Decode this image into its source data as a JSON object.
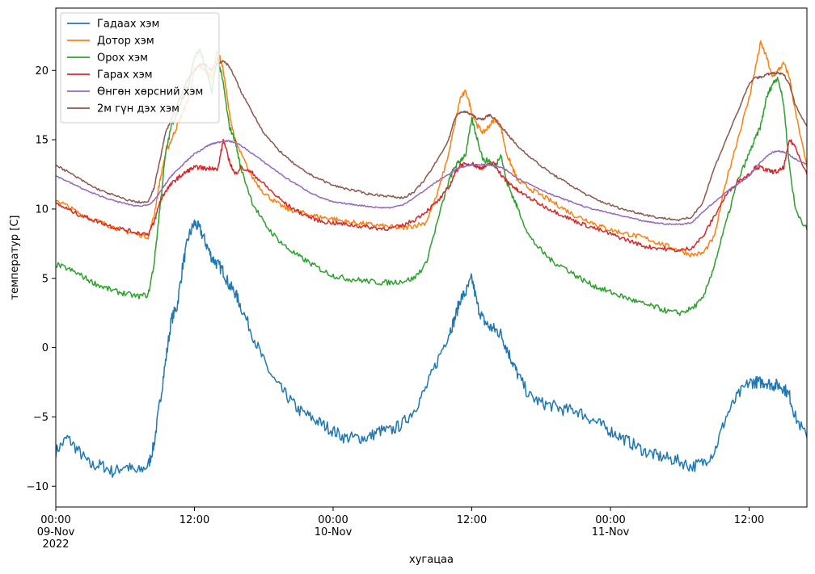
{
  "chart_data": {
    "type": "line",
    "xlabel": "хугацаа",
    "ylabel": "температур [C]",
    "x_unit": "hours since 2022-11-09 00:00",
    "xlim": [
      0,
      65
    ],
    "ylim": [
      -11.5,
      24.5
    ],
    "y_ticks": [
      -10,
      -5,
      0,
      5,
      10,
      15,
      20
    ],
    "x_ticks": [
      {
        "x": 0,
        "lines": [
          "00:00",
          "09-Nov",
          "2022"
        ]
      },
      {
        "x": 12,
        "lines": [
          "12:00"
        ]
      },
      {
        "x": 24,
        "lines": [
          "00:00",
          "10-Nov"
        ]
      },
      {
        "x": 36,
        "lines": [
          "12:00"
        ]
      },
      {
        "x": 48,
        "lines": [
          "00:00",
          "11-Nov"
        ]
      },
      {
        "x": 60,
        "lines": [
          "12:00"
        ]
      }
    ],
    "legend_position": "upper-left",
    "x": [
      0,
      1,
      2,
      3,
      4,
      5,
      6,
      7,
      8,
      8.5,
      9,
      9.5,
      10,
      10.5,
      11,
      11.5,
      12,
      12.5,
      13,
      13.5,
      14,
      14.5,
      15,
      15.5,
      16,
      17,
      18,
      19,
      20,
      21,
      22,
      23,
      24,
      25,
      26,
      27,
      28,
      29,
      30,
      31,
      32,
      33,
      34,
      34.5,
      35,
      35.5,
      36,
      36.5,
      37,
      37.5,
      38,
      38.5,
      39,
      39.5,
      40,
      41,
      42,
      43,
      44,
      45,
      46,
      47,
      48,
      49,
      50,
      51,
      52,
      53,
      54,
      55,
      56,
      57,
      58,
      59,
      60,
      60.5,
      61,
      61.5,
      62,
      62.5,
      63,
      63.5,
      64,
      65
    ],
    "series": [
      {
        "name": "Гадаах хэм",
        "color": "#1f77b4",
        "values": [
          -7.5,
          -6.5,
          -7.5,
          -8.5,
          -8.5,
          -9,
          -8.5,
          -9,
          -8.5,
          -7,
          -4,
          -1,
          2,
          3,
          6,
          8,
          9,
          8.5,
          7.5,
          6.5,
          6,
          5.5,
          4.5,
          4,
          3,
          1,
          -1,
          -2.5,
          -3.5,
          -4.5,
          -5,
          -5.5,
          -6,
          -6.5,
          -6.5,
          -6.5,
          -6,
          -6,
          -5.5,
          -4.5,
          -3,
          -1,
          1,
          2,
          3.5,
          4,
          5,
          3,
          2,
          1.5,
          1.3,
          1,
          0,
          -1,
          -2,
          -3.5,
          -4,
          -4.2,
          -4.5,
          -4.5,
          -5,
          -5.5,
          -6,
          -6.5,
          -7,
          -7.5,
          -7.8,
          -8,
          -8.2,
          -8.6,
          -8.3,
          -7.5,
          -5,
          -3.5,
          -2.5,
          -2.5,
          -2.5,
          -2.5,
          -2.7,
          -2.7,
          -2.9,
          -3.5,
          -5,
          -6.5
        ]
      },
      {
        "name": "Дотор хэм",
        "color": "#ff7f0e",
        "values": [
          10.7,
          10.2,
          9.7,
          9.3,
          9,
          8.7,
          8.4,
          8.2,
          8.0,
          9.5,
          12,
          14,
          15,
          16,
          17,
          18,
          20,
          20.3,
          20,
          19.5,
          21.5,
          20,
          17,
          15,
          14,
          12.3,
          11.2,
          10.5,
          10,
          9.8,
          9.6,
          9.4,
          9.3,
          9.1,
          9,
          8.9,
          8.8,
          8.7,
          8.6,
          8.8,
          9,
          11,
          14,
          16,
          18,
          18.5,
          17,
          16,
          15.5,
          16,
          16.5,
          16,
          14,
          13,
          12,
          11.5,
          11,
          10.5,
          10,
          9.5,
          9.2,
          8.8,
          8.5,
          8.3,
          8.1,
          7.9,
          7.6,
          7.3,
          7.0,
          6.7,
          6.8,
          8,
          12,
          15,
          18,
          20,
          22,
          21,
          19.5,
          20,
          20.5,
          19.5,
          17,
          13
        ]
      },
      {
        "name": "Орох хэм",
        "color": "#2ca02c",
        "values": [
          6,
          5.7,
          5.3,
          4.8,
          4.4,
          4.1,
          3.9,
          3.7,
          3.8,
          6,
          10,
          14,
          16,
          17,
          18,
          19,
          21,
          21.5,
          20,
          18.5,
          21,
          19,
          16,
          15,
          13,
          10.5,
          9,
          8,
          7.2,
          6.6,
          6.1,
          5.6,
          5.2,
          5,
          4.9,
          4.8,
          4.7,
          4.7,
          4.8,
          5,
          6,
          9,
          12,
          13,
          13.5,
          14,
          16.5,
          15,
          13.5,
          13.5,
          13,
          14,
          12,
          11,
          10,
          8,
          7,
          6.2,
          5.8,
          5.2,
          4.7,
          4.3,
          4,
          3.7,
          3.4,
          3.1,
          2.9,
          2.6,
          2.5,
          2.8,
          3.5,
          6,
          9,
          12,
          14,
          15,
          16,
          18,
          19,
          19.5,
          17.5,
          13,
          10,
          8.5
        ]
      },
      {
        "name": "Гарах хэм",
        "color": "#d62728",
        "values": [
          10.4,
          10.0,
          9.6,
          9.3,
          9.0,
          8.7,
          8.5,
          8.3,
          8.2,
          9,
          10.5,
          11.3,
          11.8,
          12.2,
          12.5,
          12.8,
          13,
          13,
          12.9,
          13,
          12.8,
          15,
          13.5,
          12.5,
          13,
          12.6,
          11.8,
          11,
          10.3,
          9.8,
          9.4,
          9.1,
          9,
          8.9,
          8.8,
          8.7,
          8.6,
          8.6,
          8.8,
          9.2,
          9.8,
          10.5,
          11.5,
          12.5,
          13.2,
          13.2,
          13.3,
          13,
          13,
          13.2,
          13.3,
          12.5,
          12,
          11.7,
          11.3,
          10.8,
          10.3,
          9.9,
          9.5,
          9.1,
          8.8,
          8.5,
          8.2,
          7.9,
          7.6,
          7.3,
          7.2,
          7.1,
          7.0,
          7.2,
          8,
          9.5,
          11,
          12,
          12.5,
          13,
          13,
          12.8,
          12.7,
          12.7,
          13,
          15,
          14.5,
          12.5
        ]
      },
      {
        "name": "Өнгөн хөрсний хэм",
        "color": "#9467bd",
        "values": [
          12.4,
          12,
          11.6,
          11.2,
          10.9,
          10.6,
          10.4,
          10.2,
          10.3,
          10.6,
          11.2,
          11.8,
          12.4,
          12.8,
          13.2,
          13.6,
          14,
          14.2,
          14.5,
          14.7,
          14.8,
          14.9,
          14.9,
          14.8,
          14.6,
          14,
          13.4,
          12.8,
          12.2,
          11.7,
          11.2,
          10.8,
          10.5,
          10.4,
          10.3,
          10.2,
          10.1,
          10.1,
          10.3,
          10.8,
          11.4,
          12,
          12.5,
          12.8,
          13,
          13.1,
          13.2,
          13.2,
          13.2,
          13.2,
          13.1,
          13,
          12.8,
          12.5,
          12.2,
          11.8,
          11.4,
          11,
          10.7,
          10.4,
          10.1,
          9.9,
          9.7,
          9.5,
          9.3,
          9.1,
          9,
          8.9,
          8.9,
          9,
          9.8,
          10.5,
          11.2,
          11.8,
          12.4,
          12.9,
          13.4,
          13.8,
          14.1,
          14.2,
          14.1,
          13.9,
          13.6,
          13.2
        ]
      },
      {
        "name": "2м гүн дэх хэм",
        "color": "#8c564b",
        "values": [
          13.2,
          12.7,
          12.2,
          11.7,
          11.3,
          11,
          10.7,
          10.5,
          10.5,
          11.5,
          13.5,
          15.5,
          16.5,
          17.5,
          18.5,
          19.5,
          20,
          20.5,
          20.4,
          20,
          20.5,
          20.7,
          20.3,
          19.5,
          18.5,
          17,
          15.5,
          14.5,
          13.7,
          13,
          12.5,
          12.1,
          11.7,
          11.5,
          11.3,
          11.1,
          11,
          10.9,
          10.8,
          11.2,
          12.2,
          13.5,
          15,
          16.5,
          17,
          17,
          16.8,
          16.5,
          16.5,
          16.8,
          16.5,
          16,
          15.5,
          15,
          14.5,
          13.8,
          13.1,
          12.5,
          12,
          11.5,
          11,
          10.6,
          10.3,
          10,
          9.8,
          9.6,
          9.4,
          9.3,
          9.2,
          9.4,
          10.5,
          13,
          15,
          17,
          19,
          19.5,
          19.5,
          19.7,
          19.8,
          19.8,
          19.7,
          19,
          17.5,
          16
        ]
      }
    ]
  }
}
